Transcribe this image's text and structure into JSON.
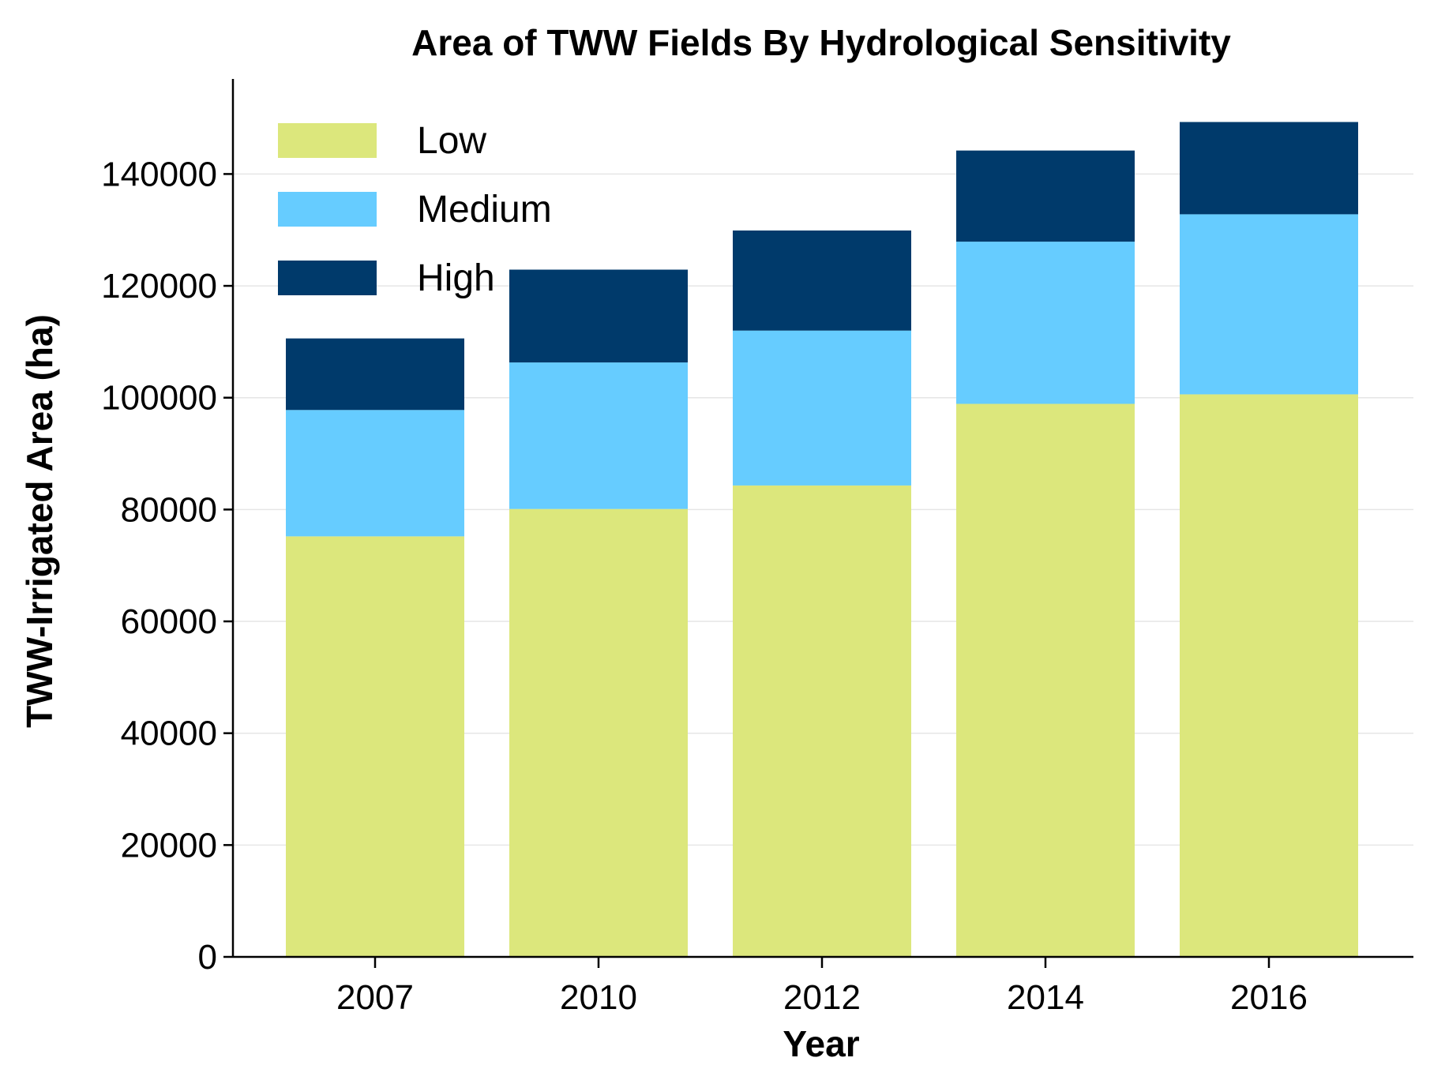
{
  "chart_data": {
    "type": "bar",
    "stacked": true,
    "title": "Area of TWW Fields By Hydrological Sensitivity",
    "xlabel": "Year",
    "ylabel": "TWW-Irrigated Area (ha)",
    "categories": [
      "2007",
      "2010",
      "2012",
      "2014",
      "2016"
    ],
    "ylim": [
      0,
      157000
    ],
    "yticks": [
      0,
      20000,
      40000,
      60000,
      80000,
      100000,
      120000,
      140000
    ],
    "grid": "horizontal",
    "legend_position": "top-left",
    "series": [
      {
        "name": "Low",
        "color": "#dce77c",
        "values": [
          75200,
          80100,
          84300,
          98900,
          100600
        ]
      },
      {
        "name": "Medium",
        "color": "#66ccff",
        "values": [
          22600,
          26200,
          27700,
          29000,
          32200
        ]
      },
      {
        "name": "High",
        "color": "#003a6b",
        "values": [
          12800,
          16600,
          17900,
          16300,
          16500
        ]
      }
    ]
  }
}
